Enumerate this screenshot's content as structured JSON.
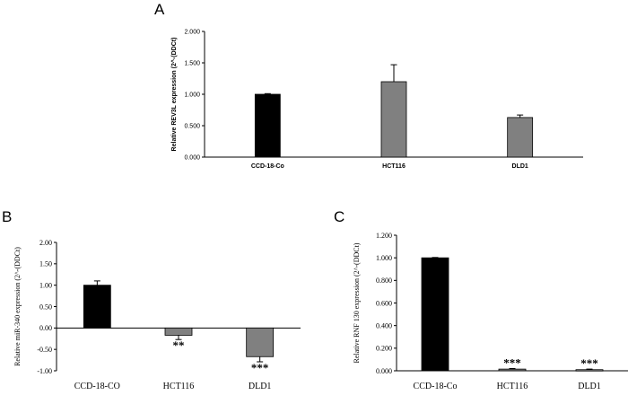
{
  "panels": {
    "A": "A",
    "B": "B",
    "C": "C"
  },
  "colors": {
    "control": "#000000",
    "treated": "#808080",
    "axis": "#000000",
    "error": "#000000"
  },
  "chart_data": [
    {
      "id": "A",
      "type": "bar",
      "title": "",
      "xlabel": "",
      "ylabel": "Relative REV3L expression (2^-(DDCt)",
      "categories": [
        "CCD-18-Co",
        "HCT116",
        "DLD1"
      ],
      "values": [
        1.0,
        1.2,
        0.63
      ],
      "errors": [
        0.01,
        0.27,
        0.04
      ],
      "significance": [
        "",
        "",
        ""
      ],
      "ylim": [
        0,
        2.0
      ],
      "yticks": [
        "0.000",
        "0.500",
        "1.000",
        "1.500",
        "2.000"
      ],
      "tick_values": [
        0,
        0.5,
        1.0,
        1.5,
        2.0
      ],
      "legend": "none"
    },
    {
      "id": "B",
      "type": "bar",
      "title": "",
      "xlabel": "",
      "ylabel": "Relative miR-340 expression (2^-(DDCt)",
      "categories": [
        "CCD-18-CO",
        "HCT116",
        "DLD1"
      ],
      "values": [
        1.0,
        -0.17,
        -0.67
      ],
      "errors": [
        0.1,
        0.1,
        0.12
      ],
      "significance": [
        "",
        "**",
        "***"
      ],
      "ylim": [
        -1.0,
        2.0
      ],
      "yticks": [
        "-1.00",
        "-0.50",
        "0.00",
        "0.50",
        "1.00",
        "1.50",
        "2.00"
      ],
      "tick_values": [
        -1.0,
        -0.5,
        0,
        0.5,
        1.0,
        1.5,
        2.0
      ],
      "legend": "none"
    },
    {
      "id": "C",
      "type": "bar",
      "title": "",
      "xlabel": "",
      "ylabel": "Relative RNF 130 expression (2^-(DDCt)",
      "categories": [
        "CCD-18-Co",
        "HCT116",
        "DLD1"
      ],
      "values": [
        1.0,
        0.015,
        0.01
      ],
      "errors": [
        0.003,
        0.005,
        0.005
      ],
      "significance": [
        "",
        "***",
        "***"
      ],
      "ylim": [
        0,
        1.2
      ],
      "yticks": [
        "0.000",
        "0.200",
        "0.400",
        "0.600",
        "0.800",
        "1.000",
        "1.200"
      ],
      "tick_values": [
        0,
        0.2,
        0.4,
        0.6,
        0.8,
        1.0,
        1.2
      ],
      "legend": "none"
    }
  ]
}
